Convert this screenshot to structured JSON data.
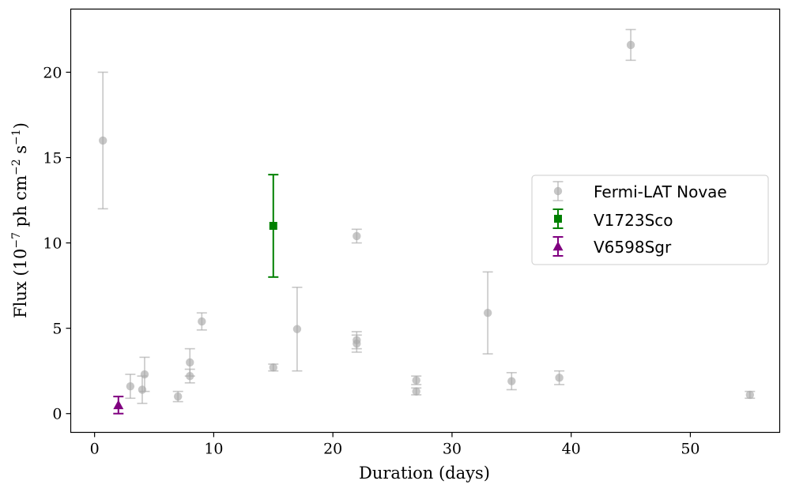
{
  "chart_data": {
    "type": "scatter",
    "xlabel": "Duration (days)",
    "ylabel_parts": [
      "Flux (10",
      "−7",
      " ph cm",
      "−2",
      " s",
      "−1",
      ")"
    ],
    "xlim": [
      -2,
      57.5
    ],
    "ylim": [
      -1.1,
      23.7
    ],
    "xticks": [
      0,
      10,
      20,
      30,
      40,
      50
    ],
    "yticks": [
      0,
      5,
      10,
      15,
      20
    ],
    "legend_position": "center-right",
    "series": [
      {
        "name": "Fermi-LAT Novae",
        "color": "#a9a9a9",
        "marker": "circle",
        "points": [
          {
            "x": 0.7,
            "y": 16.0,
            "ylo": 12.0,
            "yhi": 20.0
          },
          {
            "x": 3.0,
            "y": 1.6,
            "ylo": 0.9,
            "yhi": 2.3
          },
          {
            "x": 4.0,
            "y": 1.4,
            "ylo": 0.6,
            "yhi": 2.2
          },
          {
            "x": 4.2,
            "y": 2.3,
            "ylo": 1.3,
            "yhi": 3.3
          },
          {
            "x": 7.0,
            "y": 1.0,
            "ylo": 0.7,
            "yhi": 1.3
          },
          {
            "x": 8.0,
            "y": 2.2,
            "ylo": 1.8,
            "yhi": 2.6
          },
          {
            "x": 8.0,
            "y": 3.0,
            "ylo": 2.2,
            "yhi": 3.8
          },
          {
            "x": 9.0,
            "y": 5.4,
            "ylo": 4.9,
            "yhi": 5.9
          },
          {
            "x": 15.0,
            "y": 2.7,
            "ylo": 2.5,
            "yhi": 2.9
          },
          {
            "x": 17.0,
            "y": 4.95,
            "ylo": 2.5,
            "yhi": 7.4
          },
          {
            "x": 22.0,
            "y": 4.3,
            "ylo": 3.8,
            "yhi": 4.8
          },
          {
            "x": 22.0,
            "y": 4.1,
            "ylo": 3.6,
            "yhi": 4.6
          },
          {
            "x": 22.0,
            "y": 10.4,
            "ylo": 10.0,
            "yhi": 10.8
          },
          {
            "x": 27.0,
            "y": 1.95,
            "ylo": 1.7,
            "yhi": 2.2
          },
          {
            "x": 27.0,
            "y": 1.3,
            "ylo": 1.1,
            "yhi": 1.5
          },
          {
            "x": 33.0,
            "y": 5.9,
            "ylo": 3.5,
            "yhi": 8.3
          },
          {
            "x": 35.0,
            "y": 1.9,
            "ylo": 1.4,
            "yhi": 2.4
          },
          {
            "x": 39.0,
            "y": 2.1,
            "ylo": 1.7,
            "yhi": 2.5
          },
          {
            "x": 45.0,
            "y": 21.6,
            "ylo": 20.7,
            "yhi": 22.5
          },
          {
            "x": 55.0,
            "y": 1.1,
            "ylo": 0.9,
            "yhi": 1.3
          }
        ]
      },
      {
        "name": "V1723Sco",
        "color": "#008000",
        "marker": "square",
        "points": [
          {
            "x": 15.0,
            "y": 11.0,
            "ylo": 8.0,
            "yhi": 14.0
          }
        ]
      },
      {
        "name": "V6598Sgr",
        "color": "#800080",
        "marker": "triangle",
        "points": [
          {
            "x": 2.0,
            "y": 0.5,
            "ylo": 0.0,
            "yhi": 1.0
          }
        ]
      }
    ]
  }
}
